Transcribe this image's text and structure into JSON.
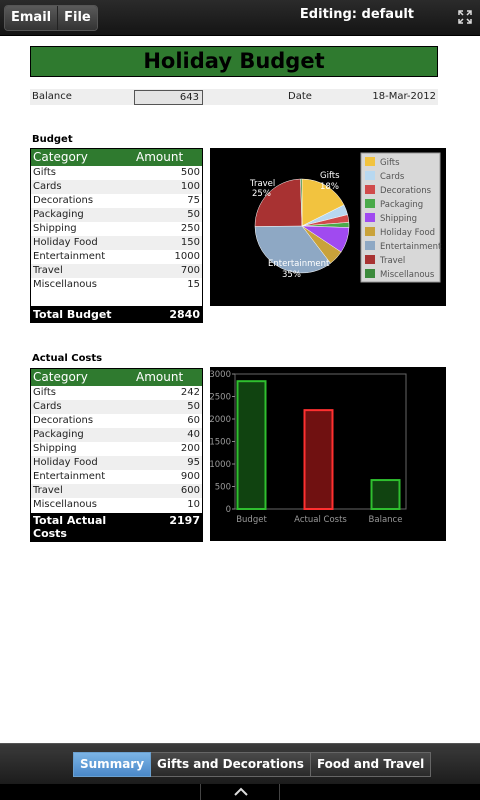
{
  "toolbar": {
    "email": "Email",
    "file": "File",
    "editing": "Editing: default"
  },
  "title": "Holiday Budget",
  "info": {
    "balance_label": "Balance",
    "balance_value": "643",
    "date_label": "Date",
    "date_value": "18-Mar-2012"
  },
  "budget": {
    "section": "Budget",
    "col_category": "Category",
    "col_amount": "Amount",
    "rows": [
      {
        "category": "Gifts",
        "amount": "500"
      },
      {
        "category": "Cards",
        "amount": "100"
      },
      {
        "category": "Decorations",
        "amount": "75"
      },
      {
        "category": "Packaging",
        "amount": "50"
      },
      {
        "category": "Shipping",
        "amount": "250"
      },
      {
        "category": "Holiday Food",
        "amount": "150"
      },
      {
        "category": "Entertainment",
        "amount": "1000"
      },
      {
        "category": "Travel",
        "amount": "700"
      },
      {
        "category": "Miscellanous",
        "amount": "15"
      }
    ],
    "total_label": "Total Budget",
    "total_value": "2840"
  },
  "actual": {
    "section": "Actual Costs",
    "col_category": "Category",
    "col_amount": "Amount",
    "rows": [
      {
        "category": "Gifts",
        "amount": "242"
      },
      {
        "category": "Cards",
        "amount": "50"
      },
      {
        "category": "Decorations",
        "amount": "60"
      },
      {
        "category": "Packaging",
        "amount": "40"
      },
      {
        "category": "Shipping",
        "amount": "200"
      },
      {
        "category": "Holiday Food",
        "amount": "95"
      },
      {
        "category": "Entertainment",
        "amount": "900"
      },
      {
        "category": "Travel",
        "amount": "600"
      },
      {
        "category": "Miscellanous",
        "amount": "10"
      }
    ],
    "total_label": "Total Actual Costs",
    "total_value": "2197"
  },
  "chart_data": [
    {
      "type": "pie",
      "categories": [
        "Gifts",
        "Cards",
        "Decorations",
        "Packaging",
        "Shipping",
        "Holiday Food",
        "Entertainment",
        "Travel",
        "Miscellanous"
      ],
      "values": [
        500,
        100,
        75,
        50,
        250,
        150,
        1000,
        700,
        15
      ],
      "colors": [
        "#f2c33f",
        "#b8d8f0",
        "#d04a4a",
        "#4aaa4a",
        "#a04af0",
        "#c9a23a",
        "#8ea8c4",
        "#a83232",
        "#3c8a3c"
      ],
      "slice_labels": [
        {
          "name": "Gifts",
          "pct": "18%"
        },
        {
          "name": "Travel",
          "pct": "25%"
        },
        {
          "name": "Entertainment",
          "pct": "35%"
        }
      ],
      "legend": "right"
    },
    {
      "type": "bar",
      "categories": [
        "Budget",
        "Actual Costs",
        "Balance"
      ],
      "values": [
        2840,
        2197,
        643
      ],
      "colors": [
        "#1e7a1e",
        "#cc1f1f",
        "#1e7a1e"
      ],
      "ylim": [
        0,
        3000
      ],
      "yticks": [
        "0",
        "500",
        "1000",
        "1500",
        "2000",
        "2500",
        "3000"
      ]
    }
  ],
  "tabs": [
    {
      "label": "Summary",
      "active": true
    },
    {
      "label": "Gifts and Decorations",
      "active": false
    },
    {
      "label": "Food and Travel",
      "active": false
    }
  ]
}
